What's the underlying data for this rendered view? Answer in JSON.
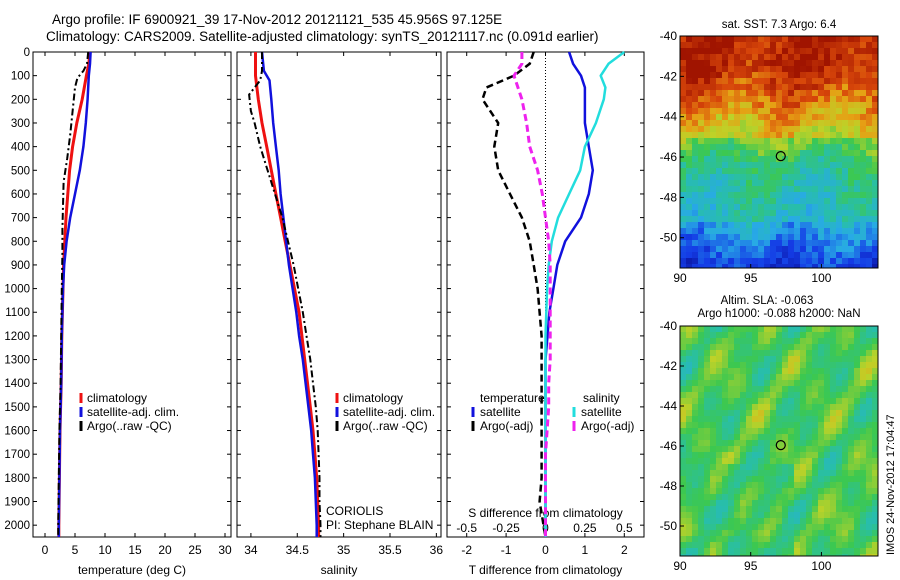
{
  "header": {
    "line1": "Argo profile: IF 6900921_39 17-Nov-2012 20121121_535 45.956S 97.125E",
    "line2": "Climatology: CARS2009. Satellite-adjusted climatology: synTS_20121117.nc (0.091d earlier)"
  },
  "stamp": "IMOS 24-Nov-2012 17:04:47",
  "colors": {
    "climatology": "#ee1111",
    "satellite": "#1111dd",
    "argo": "#000000",
    "sal_satellite": "#22dddd",
    "sal_argo": "#ee22ee"
  },
  "chart_data": [
    {
      "type": "line",
      "xlabel": "temperature (deg C)",
      "ylabel": "",
      "xlim": [
        -2,
        31
      ],
      "ylim": [
        2050,
        0
      ],
      "xticks": [
        0,
        5,
        10,
        15,
        20,
        25,
        30
      ],
      "yticks": [
        0,
        100,
        200,
        300,
        400,
        500,
        600,
        700,
        800,
        900,
        1000,
        1100,
        1200,
        1300,
        1400,
        1500,
        1600,
        1700,
        1800,
        1900,
        2000
      ],
      "legend": {
        "position": "bottom-right",
        "entries": [
          "climatology",
          "satellite-adj. clim.",
          "Argo(..raw -QC)"
        ]
      },
      "series": [
        {
          "name": "climatology",
          "points": [
            [
              7.5,
              0
            ],
            [
              7.3,
              50
            ],
            [
              6.9,
              100
            ],
            [
              6.2,
              200
            ],
            [
              5.3,
              300
            ],
            [
              4.6,
              400
            ],
            [
              4.1,
              500
            ],
            [
              3.8,
              600
            ],
            [
              3.5,
              700
            ],
            [
              3.3,
              800
            ],
            [
              3.1,
              900
            ],
            [
              3.0,
              1000
            ],
            [
              2.8,
              1200
            ],
            [
              2.7,
              1400
            ],
            [
              2.5,
              1600
            ],
            [
              2.4,
              1800
            ],
            [
              2.3,
              2000
            ],
            [
              2.3,
              2050
            ]
          ]
        },
        {
          "name": "satellite-adj. clim.",
          "points": [
            [
              7.6,
              0
            ],
            [
              7.5,
              50
            ],
            [
              7.3,
              100
            ],
            [
              7.1,
              200
            ],
            [
              6.8,
              300
            ],
            [
              6.4,
              400
            ],
            [
              5.8,
              500
            ],
            [
              5.0,
              600
            ],
            [
              4.2,
              700
            ],
            [
              3.6,
              800
            ],
            [
              3.2,
              900
            ],
            [
              3.0,
              1000
            ],
            [
              2.8,
              1200
            ],
            [
              2.7,
              1400
            ],
            [
              2.5,
              1600
            ],
            [
              2.4,
              1800
            ],
            [
              2.3,
              2000
            ],
            [
              2.3,
              2050
            ]
          ]
        },
        {
          "name": "Argo(..raw -QC)",
          "points": [
            [
              7.2,
              0
            ],
            [
              7.0,
              50
            ],
            [
              6.4,
              80
            ],
            [
              5.4,
              110
            ],
            [
              5.0,
              150
            ],
            [
              4.6,
              250
            ],
            [
              4.2,
              350
            ],
            [
              3.7,
              450
            ],
            [
              3.1,
              550
            ],
            [
              3.0,
              650
            ],
            [
              2.9,
              750
            ],
            [
              2.9,
              850
            ],
            [
              2.8,
              1000
            ],
            [
              2.7,
              1200
            ],
            [
              2.6,
              1400
            ],
            [
              2.4,
              1600
            ],
            [
              2.3,
              1800
            ],
            [
              2.2,
              2000
            ],
            [
              2.2,
              2050
            ]
          ]
        }
      ]
    },
    {
      "type": "line",
      "xlabel": "salinity",
      "xlim": [
        33.85,
        36.05
      ],
      "ylim": [
        2050,
        0
      ],
      "xticks": [
        34,
        34.5,
        35,
        35.5,
        36
      ],
      "legend": {
        "position": "bottom-right",
        "entries": [
          "climatology",
          "satellite-adj. clim.",
          "Argo(..raw -QC)"
        ]
      },
      "annotations": [
        "CORIOLIS",
        "PI: Stephane BLAIN"
      ],
      "series": [
        {
          "name": "climatology",
          "points": [
            [
              34.05,
              0
            ],
            [
              34.05,
              100
            ],
            [
              34.08,
              200
            ],
            [
              34.12,
              300
            ],
            [
              34.17,
              400
            ],
            [
              34.22,
              500
            ],
            [
              34.27,
              600
            ],
            [
              34.32,
              700
            ],
            [
              34.37,
              800
            ],
            [
              34.42,
              900
            ],
            [
              34.47,
              1000
            ],
            [
              34.52,
              1100
            ],
            [
              34.55,
              1200
            ],
            [
              34.58,
              1300
            ],
            [
              34.61,
              1400
            ],
            [
              34.64,
              1500
            ],
            [
              34.67,
              1600
            ],
            [
              34.69,
              1700
            ],
            [
              34.71,
              1800
            ],
            [
              34.72,
              1900
            ],
            [
              34.73,
              2000
            ],
            [
              34.73,
              2050
            ]
          ]
        },
        {
          "name": "satellite-adj. clim.",
          "points": [
            [
              34.12,
              0
            ],
            [
              34.14,
              80
            ],
            [
              34.2,
              120
            ],
            [
              34.22,
              200
            ],
            [
              34.24,
              300
            ],
            [
              34.27,
              400
            ],
            [
              34.3,
              500
            ],
            [
              34.32,
              600
            ],
            [
              34.35,
              700
            ],
            [
              34.38,
              800
            ],
            [
              34.41,
              900
            ],
            [
              34.45,
              1000
            ],
            [
              34.49,
              1100
            ],
            [
              34.52,
              1200
            ],
            [
              34.56,
              1300
            ],
            [
              34.59,
              1400
            ],
            [
              34.62,
              1500
            ],
            [
              34.65,
              1600
            ],
            [
              34.67,
              1700
            ],
            [
              34.69,
              1800
            ],
            [
              34.7,
              1900
            ],
            [
              34.71,
              2000
            ],
            [
              34.71,
              2050
            ]
          ]
        },
        {
          "name": "Argo(..raw -QC)",
          "points": [
            [
              34.12,
              0
            ],
            [
              34.12,
              80
            ],
            [
              34.1,
              120
            ],
            [
              33.98,
              180
            ],
            [
              34.0,
              250
            ],
            [
              34.04,
              300
            ],
            [
              34.1,
              400
            ],
            [
              34.18,
              500
            ],
            [
              34.26,
              600
            ],
            [
              34.34,
              700
            ],
            [
              34.4,
              800
            ],
            [
              34.46,
              900
            ],
            [
              34.51,
              1000
            ],
            [
              34.56,
              1100
            ],
            [
              34.6,
              1200
            ],
            [
              34.64,
              1300
            ],
            [
              34.67,
              1400
            ],
            [
              34.7,
              1500
            ],
            [
              34.72,
              1600
            ],
            [
              34.73,
              1700
            ],
            [
              34.74,
              1800
            ],
            [
              34.74,
              1900
            ],
            [
              34.75,
              2000
            ],
            [
              34.75,
              2050
            ]
          ]
        }
      ]
    },
    {
      "type": "line",
      "xlabel": "T difference from climatology",
      "xlabel_top": "S difference from climatology",
      "xlim": [
        -2.5,
        2.5
      ],
      "ylim": [
        2050,
        0
      ],
      "xticks": [
        -2,
        -1,
        0,
        1,
        2
      ],
      "xticks_top": [
        -0.5,
        -0.25,
        0,
        0.25,
        0.5
      ],
      "legend": {
        "position": "bottom",
        "groups": [
          {
            "title": "temperature",
            "entries": [
              "satellite",
              "Argo(-adj)"
            ]
          },
          {
            "title": "salinity",
            "entries": [
              "satellite",
              "Argo(-adj)"
            ]
          }
        ]
      },
      "series": [
        {
          "name": "satellite",
          "group": "temperature",
          "points": [
            [
              0.6,
              0
            ],
            [
              0.7,
              50
            ],
            [
              0.9,
              100
            ],
            [
              1.0,
              150
            ],
            [
              1.0,
              200
            ],
            [
              1.0,
              300
            ],
            [
              1.1,
              400
            ],
            [
              1.2,
              500
            ],
            [
              1.1,
              600
            ],
            [
              0.9,
              700
            ],
            [
              0.5,
              800
            ],
            [
              0.3,
              900
            ],
            [
              0.2,
              1000
            ],
            [
              0.1,
              1100
            ],
            [
              0.05,
              1200
            ],
            [
              0.0,
              1300
            ],
            [
              0.0,
              1400
            ],
            [
              0.0,
              1500
            ],
            [
              0.0,
              1700
            ],
            [
              0.0,
              1900
            ],
            [
              0.0,
              2050
            ]
          ]
        },
        {
          "name": "Argo(-adj)",
          "group": "temperature",
          "points": [
            [
              -0.3,
              0
            ],
            [
              -0.4,
              50
            ],
            [
              -0.8,
              100
            ],
            [
              -1.5,
              150
            ],
            [
              -1.6,
              200
            ],
            [
              -1.4,
              250
            ],
            [
              -1.2,
              300
            ],
            [
              -1.3,
              400
            ],
            [
              -1.2,
              500
            ],
            [
              -0.9,
              600
            ],
            [
              -0.6,
              700
            ],
            [
              -0.4,
              800
            ],
            [
              -0.3,
              900
            ],
            [
              -0.2,
              1000
            ],
            [
              -0.1,
              1200
            ],
            [
              -0.1,
              1400
            ],
            [
              -0.1,
              1600
            ],
            [
              -0.1,
              1800
            ],
            [
              -0.15,
              1900
            ],
            [
              0.0,
              2050
            ]
          ]
        },
        {
          "name": "satellite",
          "group": "salinity",
          "points": [
            [
              0.5,
              0
            ],
            [
              0.4,
              50
            ],
            [
              0.35,
              100
            ],
            [
              0.38,
              150
            ],
            [
              0.37,
              200
            ],
            [
              0.32,
              300
            ],
            [
              0.25,
              400
            ],
            [
              0.22,
              500
            ],
            [
              0.15,
              600
            ],
            [
              0.08,
              700
            ],
            [
              0.04,
              800
            ],
            [
              0.02,
              900
            ],
            [
              0.01,
              1000
            ],
            [
              0.0,
              1200
            ],
            [
              0.0,
              1400
            ],
            [
              0.0,
              1600
            ],
            [
              0.0,
              1800
            ],
            [
              0.0,
              2050
            ]
          ]
        },
        {
          "name": "Argo(-adj)",
          "group": "salinity",
          "points": [
            [
              -0.15,
              0
            ],
            [
              -0.15,
              50
            ],
            [
              -0.2,
              100
            ],
            [
              -0.15,
              200
            ],
            [
              -0.12,
              300
            ],
            [
              -0.1,
              400
            ],
            [
              -0.05,
              500
            ],
            [
              -0.02,
              600
            ],
            [
              0.0,
              700
            ],
            [
              0.02,
              800
            ],
            [
              0.03,
              900
            ],
            [
              0.03,
              1000
            ],
            [
              0.03,
              1100
            ],
            [
              0.03,
              1200
            ],
            [
              0.03,
              1300
            ],
            [
              0.02,
              1400
            ],
            [
              0.02,
              1500
            ],
            [
              0.01,
              1600
            ],
            [
              0.0,
              1700
            ],
            [
              0.0,
              1800
            ],
            [
              0.0,
              1900
            ],
            [
              0.0,
              2050
            ]
          ]
        }
      ]
    },
    {
      "type": "heatmap",
      "title": "sat. SST: 7.3  Argo: 6.4",
      "xlim": [
        90,
        104
      ],
      "ylim": [
        -51.5,
        -40
      ],
      "xticks": [
        90,
        95,
        100
      ],
      "yticks": [
        -40,
        -42,
        -44,
        -46,
        -48,
        -50
      ],
      "marker": {
        "lon": 97.125,
        "lat": -45.956
      }
    },
    {
      "type": "heatmap",
      "title_lines": [
        "Altim. SLA: -0.063",
        "Argo h1000: -0.088 h2000: NaN"
      ],
      "xlim": [
        90,
        104
      ],
      "ylim": [
        -51.5,
        -40
      ],
      "xticks": [
        90,
        95,
        100
      ],
      "yticks": [
        -40,
        -42,
        -44,
        -46,
        -48,
        -50
      ],
      "marker": {
        "lon": 97.125,
        "lat": -45.956
      }
    }
  ]
}
